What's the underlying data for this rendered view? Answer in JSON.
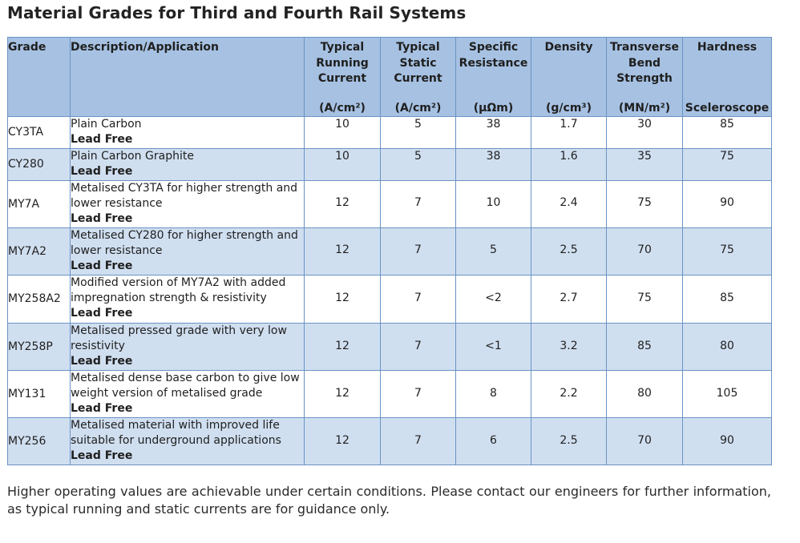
{
  "title": "Material Grades for Third and Fourth Rail Systems",
  "headers": [
    {
      "label": "Grade",
      "unit": ""
    },
    {
      "label": "Description/Application",
      "unit": ""
    },
    {
      "label": "Typical Running Current",
      "unit": "(A/cm²)"
    },
    {
      "label": "Typical Static Current",
      "unit": "(A/cm²)"
    },
    {
      "label": "Specific Resistance",
      "unit": "(μΩm)"
    },
    {
      "label": "Density",
      "unit": "(g/cm³)"
    },
    {
      "label": "Transverse Bend Strength",
      "unit": "(MN/m²)"
    },
    {
      "label": "Hardness",
      "unit": "Sceleroscope"
    }
  ],
  "rows": [
    {
      "grade": "CY3TA",
      "desc": "Plain Carbon",
      "lead": "Lead Free",
      "running": "10",
      "static": "5",
      "resistance": "38",
      "density": "1.7",
      "strength": "30",
      "hardness": "85"
    },
    {
      "grade": "CY280",
      "desc": "Plain Carbon Graphite",
      "lead": "Lead Free",
      "running": "10",
      "static": "5",
      "resistance": "38",
      "density": "1.6",
      "strength": "35",
      "hardness": "75"
    },
    {
      "grade": "MY7A",
      "desc": "Metalised CY3TA for higher strength and lower resistance",
      "lead": "Lead Free",
      "running": "12",
      "static": "7",
      "resistance": "10",
      "density": "2.4",
      "strength": "75",
      "hardness": "90"
    },
    {
      "grade": "MY7A2",
      "desc": "Metalised CY280 for higher strength and lower resistance",
      "lead": "Lead Free",
      "running": "12",
      "static": "7",
      "resistance": "5",
      "density": "2.5",
      "strength": "70",
      "hardness": "75"
    },
    {
      "grade": "MY258A2",
      "desc": "Modified version of MY7A2 with added impregnation strength & resistivity",
      "lead": "Lead Free",
      "running": "12",
      "static": "7",
      "resistance": "<2",
      "density": "2.7",
      "strength": "75",
      "hardness": "85"
    },
    {
      "grade": "MY258P",
      "desc": "Metalised pressed grade with very low resistivity",
      "lead": "Lead Free",
      "running": "12",
      "static": "7",
      "resistance": "<1",
      "density": "3.2",
      "strength": "85",
      "hardness": "80"
    },
    {
      "grade": "MY131",
      "desc": "Metalised dense base carbon to give low weight version of metalised grade",
      "lead": "Lead Free",
      "running": "12",
      "static": "7",
      "resistance": "8",
      "density": "2.2",
      "strength": "80",
      "hardness": "105"
    },
    {
      "grade": "MY256",
      "desc": "Metalised material with improved life suitable for underground applications",
      "lead": "Lead Free",
      "running": "12",
      "static": "7",
      "resistance": "6",
      "density": "2.5",
      "strength": "70",
      "hardness": "90"
    }
  ],
  "footnote": "Higher operating values are achievable under certain conditions. Please contact our engineers for further information, as typical running and static currents are for guidance only."
}
